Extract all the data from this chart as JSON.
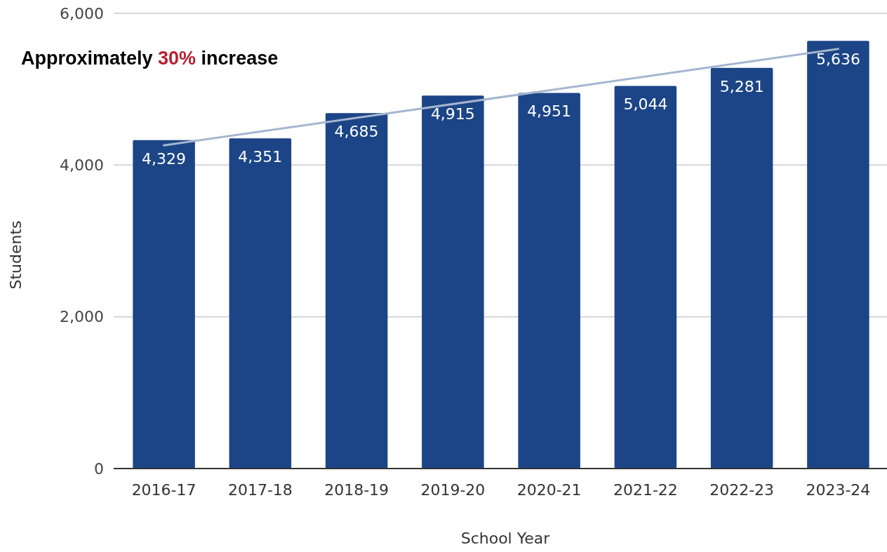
{
  "chart_data": {
    "type": "bar",
    "xlabel": "School Year",
    "ylabel": "Students",
    "categories": [
      "2016-17",
      "2017-18",
      "2018-19",
      "2019-20",
      "2020-21",
      "2021-22",
      "2022-23",
      "2023-24"
    ],
    "series": [
      {
        "color": "#1c4587",
        "values": [
          4329,
          4351,
          4685,
          4915,
          4951,
          5044,
          5281,
          5636
        ],
        "value_labels": [
          "4,329",
          "4,351",
          "4,685",
          "4,915",
          "4,951",
          "5,044",
          "5,281",
          "5,636"
        ]
      },
      {
        "type": "line",
        "color": "#a4b6cf",
        "x": [
          "2016-17",
          "2023-24"
        ],
        "values": [
          4260,
          5530
        ]
      }
    ],
    "ylim": [
      0,
      6000
    ],
    "yticks": [
      {
        "value": 0,
        "label": "0"
      },
      {
        "value": 2000,
        "label": "2,000"
      },
      {
        "value": 4000,
        "label": "4,000"
      },
      {
        "value": 6000,
        "label": "6,000"
      }
    ],
    "grid": "y",
    "annotations": [
      "Approximately 30% increase"
    ]
  }
}
